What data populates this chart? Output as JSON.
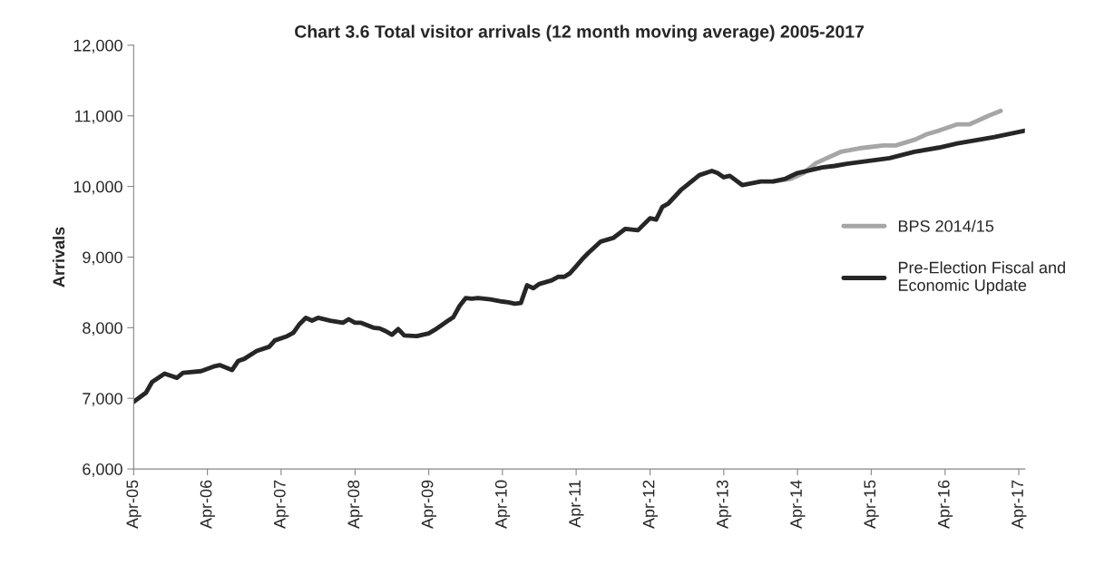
{
  "chart_data": {
    "type": "line",
    "title": "Chart 3.6 Total visitor arrivals (12 month moving average) 2005-2017",
    "ylabel": "Arrivals",
    "series": [
      {
        "name": "BPS 2014/15",
        "color": "#a6a6a6",
        "x": [
          "2013-12",
          "2014-03",
          "2014-05",
          "2014-07",
          "2014-11",
          "2015-02",
          "2015-04",
          "2015-06",
          "2015-08",
          "2015-11",
          "2016-01",
          "2016-03",
          "2016-06",
          "2016-08",
          "2016-11",
          "2017-01"
        ],
        "values": [
          10070,
          10110,
          10190,
          10330,
          10490,
          10540,
          10560,
          10580,
          10580,
          10660,
          10740,
          10790,
          10880,
          10880,
          11000,
          11070
        ]
      },
      {
        "name": "Pre-Election Fiscal and\nEconomic Update",
        "color": "#262626",
        "x": [
          "2005-04",
          "2005-06",
          "2005-07",
          "2005-09",
          "2005-10",
          "2005-11",
          "2005-12",
          "2006-03",
          "2006-05",
          "2006-06",
          "2006-08",
          "2006-09",
          "2006-10",
          "2006-12",
          "2007-02",
          "2007-03",
          "2007-05",
          "2007-06",
          "2007-07",
          "2007-08",
          "2007-09",
          "2007-10",
          "2007-12",
          "2008-02",
          "2008-03",
          "2008-04",
          "2008-05",
          "2008-07",
          "2008-08",
          "2008-09",
          "2008-10",
          "2008-11",
          "2008-12",
          "2009-02",
          "2009-04",
          "2009-05",
          "2009-06",
          "2009-07",
          "2009-08",
          "2009-09",
          "2009-10",
          "2009-11",
          "2009-12",
          "2010-02",
          "2010-04",
          "2010-05",
          "2010-06",
          "2010-07",
          "2010-08",
          "2010-09",
          "2010-10",
          "2010-12",
          "2011-01",
          "2011-02",
          "2011-03",
          "2011-04",
          "2011-05",
          "2011-06",
          "2011-08",
          "2011-10",
          "2011-12",
          "2012-02",
          "2012-04",
          "2012-05",
          "2012-06",
          "2012-07",
          "2012-09",
          "2012-10",
          "2012-12",
          "2013-02",
          "2013-03",
          "2013-04",
          "2013-05",
          "2013-07",
          "2013-10",
          "2013-12",
          "2014-02",
          "2014-04",
          "2014-08",
          "2014-10",
          "2014-12",
          "2015-07",
          "2015-11",
          "2016-03",
          "2016-06",
          "2016-12",
          "2017-05"
        ],
        "values": [
          6950,
          7080,
          7230,
          7350,
          7320,
          7290,
          7360,
          7385,
          7450,
          7470,
          7400,
          7530,
          7560,
          7670,
          7730,
          7820,
          7880,
          7930,
          8050,
          8140,
          8100,
          8140,
          8100,
          8070,
          8120,
          8070,
          8070,
          8000,
          7990,
          7950,
          7900,
          7980,
          7890,
          7880,
          7920,
          7970,
          8030,
          8090,
          8150,
          8310,
          8420,
          8410,
          8420,
          8400,
          8370,
          8360,
          8340,
          8350,
          8600,
          8560,
          8620,
          8670,
          8720,
          8720,
          8770,
          8870,
          8970,
          9060,
          9220,
          9270,
          9400,
          9380,
          9550,
          9530,
          9710,
          9760,
          9950,
          10020,
          10160,
          10220,
          10190,
          10130,
          10150,
          10020,
          10070,
          10070,
          10110,
          10190,
          10270,
          10290,
          10320,
          10400,
          10490,
          10550,
          10610,
          10700,
          10790
        ]
      }
    ],
    "xlim": [
      "2005-04",
      "2017-05"
    ],
    "xticks": [
      {
        "value": "2005-04",
        "label": "Apr-05"
      },
      {
        "value": "2006-04",
        "label": "Apr-06"
      },
      {
        "value": "2007-04",
        "label": "Apr-07"
      },
      {
        "value": "2008-04",
        "label": "Apr-08"
      },
      {
        "value": "2009-04",
        "label": "Apr-09"
      },
      {
        "value": "2010-04",
        "label": "Apr-10"
      },
      {
        "value": "2011-04",
        "label": "Apr-11"
      },
      {
        "value": "2012-04",
        "label": "Apr-12"
      },
      {
        "value": "2013-04",
        "label": "Apr-13"
      },
      {
        "value": "2014-04",
        "label": "Apr-14"
      },
      {
        "value": "2015-04",
        "label": "Apr-15"
      },
      {
        "value": "2016-04",
        "label": "Apr-16"
      },
      {
        "value": "2017-04",
        "label": "Apr-17"
      }
    ],
    "ylim": [
      6000,
      12000
    ],
    "yticks": [
      {
        "value": 6000,
        "label": "6,000"
      },
      {
        "value": 7000,
        "label": "7,000"
      },
      {
        "value": 8000,
        "label": "8,000"
      },
      {
        "value": 9000,
        "label": "9,000"
      },
      {
        "value": 10000,
        "label": "10,000"
      },
      {
        "value": 11000,
        "label": "11,000"
      },
      {
        "value": 12000,
        "label": "12,000"
      }
    ],
    "grid": false,
    "legend": "right",
    "marker": "none",
    "line_style": "solid"
  }
}
